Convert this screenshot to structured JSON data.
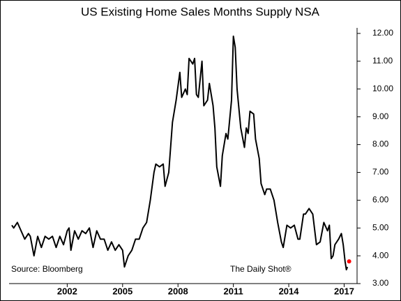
{
  "chart_data": {
    "type": "line",
    "title": "US Existing Home Sales Months Supply NSA",
    "source": "Source: Bloomberg",
    "credit": "The Daily Shot®",
    "x": [
      1999.0,
      1999.1,
      1999.3,
      1999.5,
      1999.7,
      1999.9,
      2000.0,
      2000.2,
      2000.4,
      2000.6,
      2000.8,
      2001.0,
      2001.2,
      2001.4,
      2001.6,
      2001.8,
      2002.0,
      2002.1,
      2002.2,
      2002.4,
      2002.6,
      2002.8,
      2003.0,
      2003.2,
      2003.4,
      2003.6,
      2003.8,
      2004.0,
      2004.2,
      2004.4,
      2004.6,
      2004.8,
      2005.0,
      2005.1,
      2005.3,
      2005.5,
      2005.7,
      2005.9,
      2006.1,
      2006.3,
      2006.5,
      2006.7,
      2006.8,
      2007.0,
      2007.2,
      2007.3,
      2007.5,
      2007.7,
      2007.9,
      2008.1,
      2008.2,
      2008.4,
      2008.5,
      2008.6,
      2008.8,
      2008.9,
      2009.0,
      2009.1,
      2009.3,
      2009.4,
      2009.6,
      2009.7,
      2009.9,
      2010.0,
      2010.1,
      2010.3,
      2010.4,
      2010.6,
      2010.7,
      2010.9,
      2011.0,
      2011.1,
      2011.2,
      2011.4,
      2011.6,
      2011.7,
      2011.8,
      2011.9,
      2012.1,
      2012.2,
      2012.4,
      2012.5,
      2012.7,
      2012.8,
      2013.0,
      2013.2,
      2013.4,
      2013.6,
      2013.7,
      2013.9,
      2014.1,
      2014.3,
      2014.5,
      2014.6,
      2014.8,
      2014.9,
      2015.1,
      2015.3,
      2015.5,
      2015.7,
      2015.9,
      2016.1,
      2016.2,
      2016.3,
      2016.4,
      2016.5,
      2016.7,
      2016.85,
      2016.95,
      2017.05,
      2017.12,
      2017.18
    ],
    "series": [
      {
        "name": "Months Supply",
        "color": "#000000",
        "values": [
          5.1,
          5.0,
          5.2,
          4.9,
          4.6,
          4.8,
          4.7,
          4.0,
          4.7,
          4.3,
          4.7,
          4.6,
          4.7,
          4.3,
          4.7,
          4.4,
          4.9,
          5.0,
          4.2,
          4.9,
          4.6,
          4.9,
          4.8,
          5.0,
          4.3,
          4.9,
          4.6,
          4.6,
          4.2,
          4.5,
          4.2,
          4.4,
          4.2,
          3.6,
          4.0,
          4.2,
          4.6,
          4.6,
          5.0,
          5.2,
          6.0,
          7.0,
          7.3,
          7.2,
          7.3,
          6.5,
          7.0,
          8.8,
          9.6,
          10.6,
          9.7,
          10.0,
          9.8,
          11.1,
          10.9,
          11.1,
          9.8,
          9.7,
          11.0,
          9.4,
          9.6,
          10.2,
          9.4,
          8.6,
          7.2,
          6.5,
          7.6,
          8.4,
          8.2,
          9.6,
          11.9,
          11.5,
          10.0,
          8.6,
          7.9,
          8.6,
          8.4,
          9.2,
          9.1,
          8.2,
          7.5,
          6.6,
          6.2,
          6.4,
          6.4,
          6.0,
          5.2,
          4.5,
          4.3,
          5.1,
          5.0,
          5.1,
          4.6,
          4.6,
          5.5,
          5.5,
          5.7,
          5.5,
          4.4,
          4.5,
          5.2,
          4.9,
          5.1,
          3.9,
          4.0,
          4.4,
          4.6,
          4.8,
          4.4,
          3.8,
          3.5,
          3.6
        ]
      }
    ],
    "highlight": {
      "x": 2017.27,
      "value": 3.8,
      "color": "#ff0000"
    },
    "xlim": [
      1998.85,
      2017.7
    ],
    "xticks": [
      2002,
      2005,
      2008,
      2011,
      2014,
      2017
    ],
    "ylim": [
      2.8,
      12.2
    ],
    "yticks": [
      {
        "value": 3,
        "label": "3.00"
      },
      {
        "value": 4,
        "label": "4.00"
      },
      {
        "value": 5,
        "label": "5.00"
      },
      {
        "value": 6,
        "label": "6.00"
      },
      {
        "value": 7,
        "label": "7.00"
      },
      {
        "value": 8,
        "label": "8.00"
      },
      {
        "value": 9,
        "label": "9.00"
      },
      {
        "value": 10,
        "label": "10.00"
      },
      {
        "value": 11,
        "label": "11.00"
      },
      {
        "value": 12,
        "label": "12.00"
      }
    ]
  }
}
